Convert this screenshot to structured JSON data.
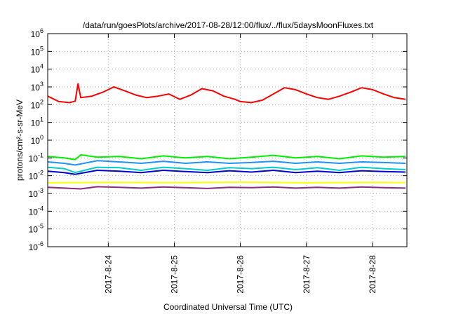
{
  "chart_data": {
    "type": "line",
    "title": "/data/run/goesPlots/archive/2017-08-28/12:00/flux/../flux/5daysMoonFluxes.txt",
    "xlabel": "Coordinated Universal Time (UTC)",
    "ylabel": "protons/cm²-s-sr-MeV",
    "yscale": "log",
    "ylim": [
      1e-06,
      1000000.0
    ],
    "y_ticks": [
      {
        "value": 1e-06,
        "base": "10",
        "exp": "-6"
      },
      {
        "value": 1e-05,
        "base": "10",
        "exp": "-5"
      },
      {
        "value": 0.0001,
        "base": "10",
        "exp": "-4"
      },
      {
        "value": 0.001,
        "base": "10",
        "exp": "-3"
      },
      {
        "value": 0.01,
        "base": "10",
        "exp": "-2"
      },
      {
        "value": 0.1,
        "base": "10",
        "exp": "-1"
      },
      {
        "value": 1.0,
        "base": "10",
        "exp": "0"
      },
      {
        "value": 10.0,
        "base": "10",
        "exp": "1"
      },
      {
        "value": 100.0,
        "base": "10",
        "exp": "2"
      },
      {
        "value": 1000.0,
        "base": "10",
        "exp": "3"
      },
      {
        "value": 10000.0,
        "base": "10",
        "exp": "4"
      },
      {
        "value": 100000.0,
        "base": "10",
        "exp": "5"
      },
      {
        "value": 1000000.0,
        "base": "10",
        "exp": "6"
      }
    ],
    "xlim": [
      "2017-08-23 02:00",
      "2017-08-28 12:30"
    ],
    "x_ticks": [
      "2017-8-24",
      "2017-8-25",
      "2017-8-26",
      "2017-8-27",
      "2017-8-28"
    ],
    "grid": true,
    "series": [
      {
        "color": "#ff0000",
        "x": [
          "2017-08-23 02:00",
          "2017-08-23 06:00",
          "2017-08-23 10:00",
          "2017-08-23 12:00",
          "2017-08-23 13:00",
          "2017-08-23 14:00",
          "2017-08-23 18:00",
          "2017-08-23 22:00",
          "2017-08-24 02:00",
          "2017-08-24 06:00",
          "2017-08-24 10:00",
          "2017-08-24 14:00",
          "2017-08-24 18:00",
          "2017-08-24 22:00",
          "2017-08-25 02:00",
          "2017-08-25 06:00",
          "2017-08-25 10:00",
          "2017-08-25 14:00",
          "2017-08-25 18:00",
          "2017-08-25 22:00",
          "2017-08-26 00:00",
          "2017-08-26 04:00",
          "2017-08-26 08:00",
          "2017-08-26 12:00",
          "2017-08-26 16:00",
          "2017-08-26 20:00",
          "2017-08-27 00:00",
          "2017-08-27 04:00",
          "2017-08-27 08:00",
          "2017-08-27 12:00",
          "2017-08-27 16:00",
          "2017-08-27 20:00",
          "2017-08-28 00:00",
          "2017-08-28 04:00",
          "2017-08-28 08:00",
          "2017-08-28 12:00"
        ],
        "y": [
          300,
          150,
          130,
          160,
          1500,
          250,
          300,
          500,
          1000,
          600,
          350,
          250,
          300,
          400,
          200,
          350,
          800,
          600,
          300,
          200,
          150,
          130,
          180,
          400,
          900,
          700,
          400,
          250,
          200,
          300,
          500,
          900,
          700,
          400,
          250,
          200
        ]
      },
      {
        "color": "#00ee00",
        "x": [
          "2017-08-23 02:00",
          "2017-08-23 08:00",
          "2017-08-23 12:00",
          "2017-08-23 14:00",
          "2017-08-23 20:00",
          "2017-08-24 04:00",
          "2017-08-24 12:00",
          "2017-08-24 20:00",
          "2017-08-25 04:00",
          "2017-08-25 12:00",
          "2017-08-25 20:00",
          "2017-08-26 04:00",
          "2017-08-26 12:00",
          "2017-08-26 20:00",
          "2017-08-27 04:00",
          "2017-08-27 12:00",
          "2017-08-27 20:00",
          "2017-08-28 04:00",
          "2017-08-28 12:00"
        ],
        "y": [
          0.12,
          0.1,
          0.08,
          0.15,
          0.11,
          0.12,
          0.09,
          0.13,
          0.1,
          0.12,
          0.09,
          0.11,
          0.14,
          0.1,
          0.12,
          0.09,
          0.13,
          0.11,
          0.12
        ]
      },
      {
        "color": "#1e90ff",
        "x": [
          "2017-08-23 02:00",
          "2017-08-23 08:00",
          "2017-08-23 12:00",
          "2017-08-23 20:00",
          "2017-08-24 04:00",
          "2017-08-24 12:00",
          "2017-08-24 20:00",
          "2017-08-25 04:00",
          "2017-08-25 12:00",
          "2017-08-25 20:00",
          "2017-08-26 04:00",
          "2017-08-26 12:00",
          "2017-08-26 20:00",
          "2017-08-27 04:00",
          "2017-08-27 12:00",
          "2017-08-27 20:00",
          "2017-08-28 04:00",
          "2017-08-28 12:00"
        ],
        "y": [
          0.06,
          0.05,
          0.04,
          0.07,
          0.06,
          0.05,
          0.065,
          0.05,
          0.06,
          0.05,
          0.055,
          0.065,
          0.05,
          0.06,
          0.05,
          0.06,
          0.055,
          0.05
        ]
      },
      {
        "color": "#00cccc",
        "x": [
          "2017-08-23 02:00",
          "2017-08-23 08:00",
          "2017-08-23 12:00",
          "2017-08-23 20:00",
          "2017-08-24 04:00",
          "2017-08-24 12:00",
          "2017-08-24 20:00",
          "2017-08-25 04:00",
          "2017-08-25 12:00",
          "2017-08-25 20:00",
          "2017-08-26 04:00",
          "2017-08-26 12:00",
          "2017-08-26 20:00",
          "2017-08-27 04:00",
          "2017-08-27 12:00",
          "2017-08-27 20:00",
          "2017-08-28 04:00",
          "2017-08-28 12:00"
        ],
        "y": [
          0.03,
          0.025,
          0.015,
          0.03,
          0.028,
          0.02,
          0.03,
          0.025,
          0.02,
          0.028,
          0.025,
          0.03,
          0.022,
          0.028,
          0.02,
          0.03,
          0.025,
          0.022
        ]
      },
      {
        "color": "#0000cc",
        "x": [
          "2017-08-23 02:00",
          "2017-08-23 08:00",
          "2017-08-23 12:00",
          "2017-08-23 20:00",
          "2017-08-24 04:00",
          "2017-08-24 12:00",
          "2017-08-24 20:00",
          "2017-08-25 04:00",
          "2017-08-25 12:00",
          "2017-08-25 20:00",
          "2017-08-26 04:00",
          "2017-08-26 12:00",
          "2017-08-26 20:00",
          "2017-08-27 04:00",
          "2017-08-27 12:00",
          "2017-08-27 20:00",
          "2017-08-28 04:00",
          "2017-08-28 12:00"
        ],
        "y": [
          0.018,
          0.015,
          0.012,
          0.02,
          0.018,
          0.015,
          0.02,
          0.017,
          0.015,
          0.019,
          0.016,
          0.02,
          0.015,
          0.018,
          0.015,
          0.019,
          0.017,
          0.016
        ]
      },
      {
        "color": "#ffff00",
        "x": [
          "2017-08-23 02:00",
          "2017-08-24 00:00",
          "2017-08-25 00:00",
          "2017-08-26 00:00",
          "2017-08-27 00:00",
          "2017-08-28 00:00",
          "2017-08-28 12:00"
        ],
        "y": [
          0.004,
          0.0042,
          0.0041,
          0.0043,
          0.004,
          0.0042,
          0.0041
        ]
      },
      {
        "color": "#8b2a7a",
        "x": [
          "2017-08-23 02:00",
          "2017-08-23 08:00",
          "2017-08-23 14:00",
          "2017-08-23 20:00",
          "2017-08-24 04:00",
          "2017-08-24 12:00",
          "2017-08-24 20:00",
          "2017-08-25 04:00",
          "2017-08-25 12:00",
          "2017-08-25 20:00",
          "2017-08-26 04:00",
          "2017-08-26 12:00",
          "2017-08-26 20:00",
          "2017-08-27 04:00",
          "2017-08-27 12:00",
          "2017-08-27 20:00",
          "2017-08-28 04:00",
          "2017-08-28 12:00"
        ],
        "y": [
          0.0022,
          0.002,
          0.0018,
          0.0024,
          0.0022,
          0.002,
          0.0023,
          0.0021,
          0.0019,
          0.0022,
          0.0021,
          0.0023,
          0.002,
          0.0022,
          0.002,
          0.0023,
          0.0021,
          0.002
        ]
      }
    ]
  }
}
